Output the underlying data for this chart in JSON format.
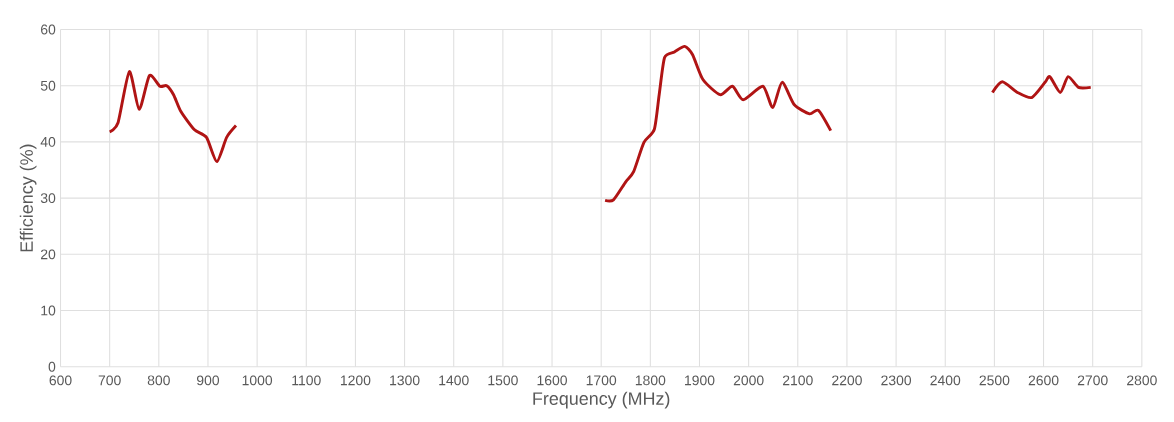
{
  "chart_data": {
    "type": "line",
    "xlabel": "Frequency (MHz)",
    "ylabel": "Efficiency (%)",
    "x": [
      700,
      717,
      740,
      760,
      781,
      802,
      816,
      830,
      845,
      872,
      897,
      918,
      938,
      957,
      1300,
      1708,
      1725,
      1750,
      1766,
      1787,
      1808,
      1818,
      1829,
      1849,
      1870,
      1886,
      1907,
      1942,
      1967,
      1989,
      2029,
      2049,
      2068,
      2093,
      2124,
      2142,
      2167,
      2300,
      2496,
      2516,
      2547,
      2576,
      2603,
      2613,
      2634,
      2650,
      2671,
      2696
    ],
    "values": [
      41.8,
      43.4,
      52.5,
      45.8,
      51.8,
      49.9,
      50.0,
      48.4,
      45.4,
      42.2,
      40.8,
      36.5,
      40.8,
      42.9,
      null,
      29.6,
      29.7,
      32.9,
      34.7,
      39.9,
      42.2,
      48.4,
      55.0,
      56.0,
      57.0,
      55.5,
      51.1,
      48.4,
      49.9,
      47.5,
      49.9,
      46.1,
      50.6,
      46.6,
      45.0,
      45.6,
      42.0,
      null,
      48.8,
      50.7,
      48.8,
      47.9,
      50.6,
      51.6,
      48.8,
      51.6,
      49.7,
      49.7
    ],
    "color": "#b01414",
    "line_style": "solid",
    "marker": "none",
    "grid": true,
    "xlim": [
      600,
      2800
    ],
    "xticks": [
      600,
      700,
      800,
      900,
      1000,
      1100,
      1200,
      1300,
      1400,
      1500,
      1600,
      1700,
      1800,
      1900,
      2000,
      2100,
      2200,
      2300,
      2400,
      2500,
      2600,
      2700,
      2800
    ],
    "ylim": [
      0,
      60
    ],
    "yticks": [
      0,
      10,
      20,
      30,
      40,
      50,
      60
    ]
  }
}
